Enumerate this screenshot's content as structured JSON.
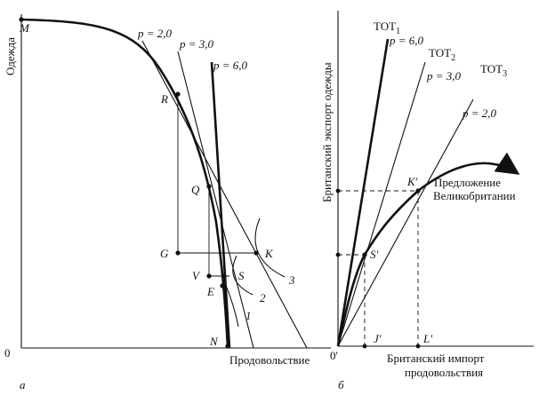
{
  "panel_a": {
    "y_axis_label": "Одежда",
    "x_axis_label": "Продовольствие",
    "origin_label": "0",
    "panel_letter": "а",
    "points": {
      "M": "M",
      "R": "R",
      "Q": "Q",
      "G": "G",
      "K": "K",
      "V": "V",
      "S": "S",
      "E": "E",
      "N": "N"
    },
    "price_lines": {
      "p2": "p = 2,0",
      "p3": "p = 3,0",
      "p6": "p = 6,0"
    },
    "indifference": {
      "c1": "1",
      "c2": "2",
      "c3": "3"
    }
  },
  "panel_b": {
    "y_axis_label": "Британский экспорт одежды",
    "x_axis_label_1": "Британский импорт",
    "x_axis_label_2": "продовольствия",
    "origin_label": "0'",
    "panel_letter": "б",
    "tot": {
      "t1": "ТОТ",
      "t1s": "1",
      "t2": "ТОТ",
      "t2s": "2",
      "t3": "ТОТ",
      "t3s": "3"
    },
    "price_lines": {
      "p6": "p = 6,0",
      "p3": "p = 3,0",
      "p2": "p = 2,0"
    },
    "points": {
      "K": "K'",
      "S": "S'",
      "J": "J'",
      "L": "L'"
    },
    "offer_curve_1": "Предложение",
    "offer_curve_2": "Великобритании"
  }
}
